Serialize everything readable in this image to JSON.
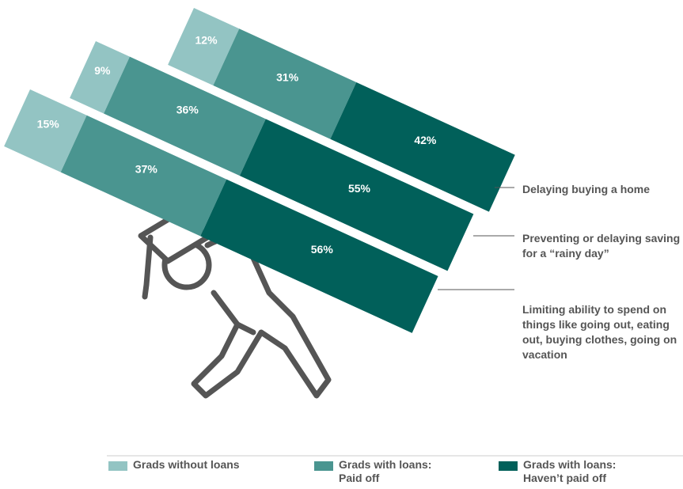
{
  "chart_data": {
    "type": "tilted-stacked-bar",
    "categories": [
      "Delaying buying a home",
      "Preventing or delaying saving for a “rainy day”",
      "Limiting ability to spend on things like going out, eating out, buying clothes, going on vacation"
    ],
    "series": [
      {
        "name": "Grads without loans",
        "color": "#93c4c3",
        "values": [
          12,
          9,
          15
        ],
        "value_labels": [
          "12%",
          "9%",
          "15%"
        ]
      },
      {
        "name": "Grads with loans: Paid off",
        "color": "#4a9590",
        "values": [
          31,
          36,
          37
        ],
        "value_labels": [
          "31%",
          "36%",
          "37%"
        ]
      },
      {
        "name": "Grads with loans: Haven’t paid off",
        "color": "#01605a",
        "values": [
          42,
          55,
          56
        ],
        "value_labels": [
          "42%",
          "55%",
          "56%"
        ]
      }
    ]
  }
}
